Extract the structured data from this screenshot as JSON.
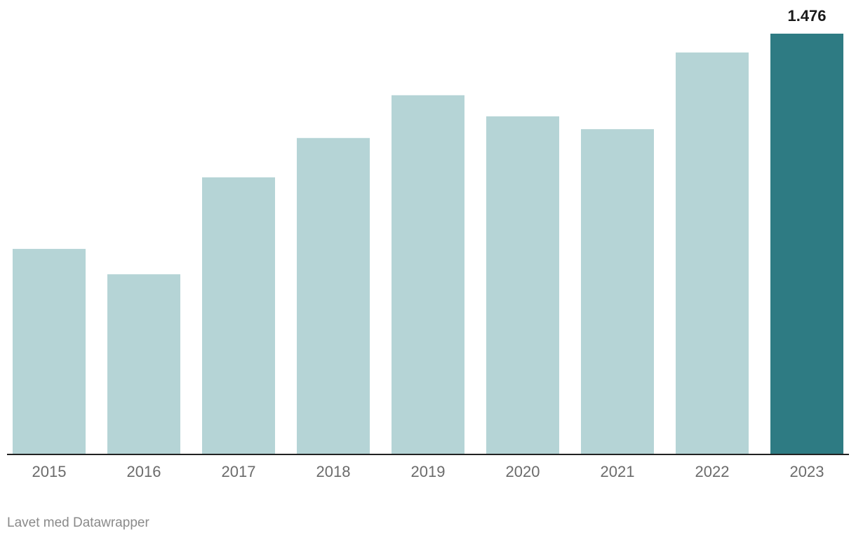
{
  "chart_data": {
    "type": "bar",
    "categories": [
      "2015",
      "2016",
      "2017",
      "2018",
      "2019",
      "2020",
      "2021",
      "2022",
      "2023"
    ],
    "values": [
      721,
      632,
      972,
      1110,
      1260,
      1186,
      1141,
      1410,
      1476
    ],
    "value_labels": [
      null,
      null,
      null,
      null,
      null,
      null,
      null,
      null,
      "1.476"
    ],
    "colors": [
      "#b5d4d6",
      "#b5d4d6",
      "#b5d4d6",
      "#b5d4d6",
      "#b5d4d6",
      "#b5d4d6",
      "#b5d4d6",
      "#b5d4d6",
      "#2e7b83"
    ],
    "footer": "Lavet med Datawrapper"
  }
}
